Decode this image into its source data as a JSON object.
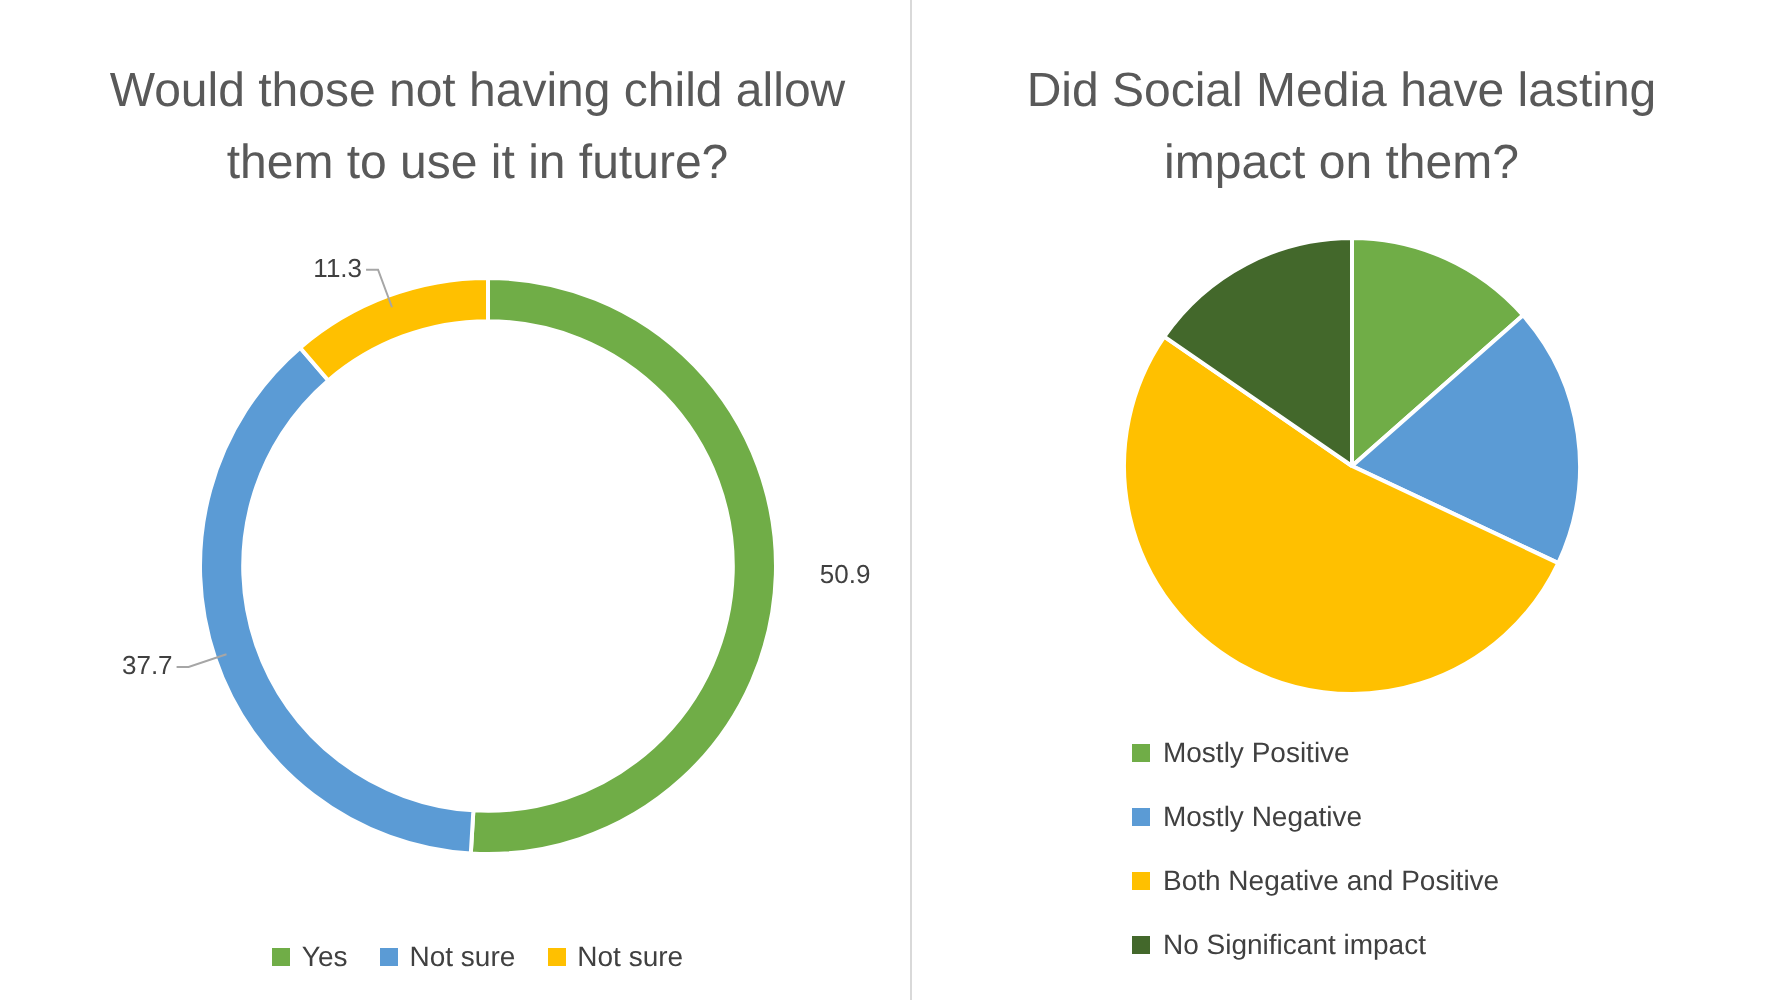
{
  "chart_data": [
    {
      "type": "donut",
      "title": "Would those not having child allow them to use it in future?",
      "categories": [
        "Yes",
        "Not sure",
        "Not sure"
      ],
      "values": [
        50.9,
        37.7,
        11.3
      ],
      "colors": [
        "#70ad47",
        "#5b9bd5",
        "#ffc000"
      ],
      "data_labels": true,
      "legend": "bottom"
    },
    {
      "type": "pie",
      "title": "Did Social Media have lasting impact on them?",
      "categories": [
        "Mostly Positive",
        "Mostly Negative",
        "Both Negative and Positive",
        "No Significant impact"
      ],
      "values": [
        13.5,
        18.5,
        52.6,
        15.4
      ],
      "colors": [
        "#70ad47",
        "#5b9bd5",
        "#ffc000",
        "#43682b"
      ],
      "legend": "bottom"
    }
  ]
}
